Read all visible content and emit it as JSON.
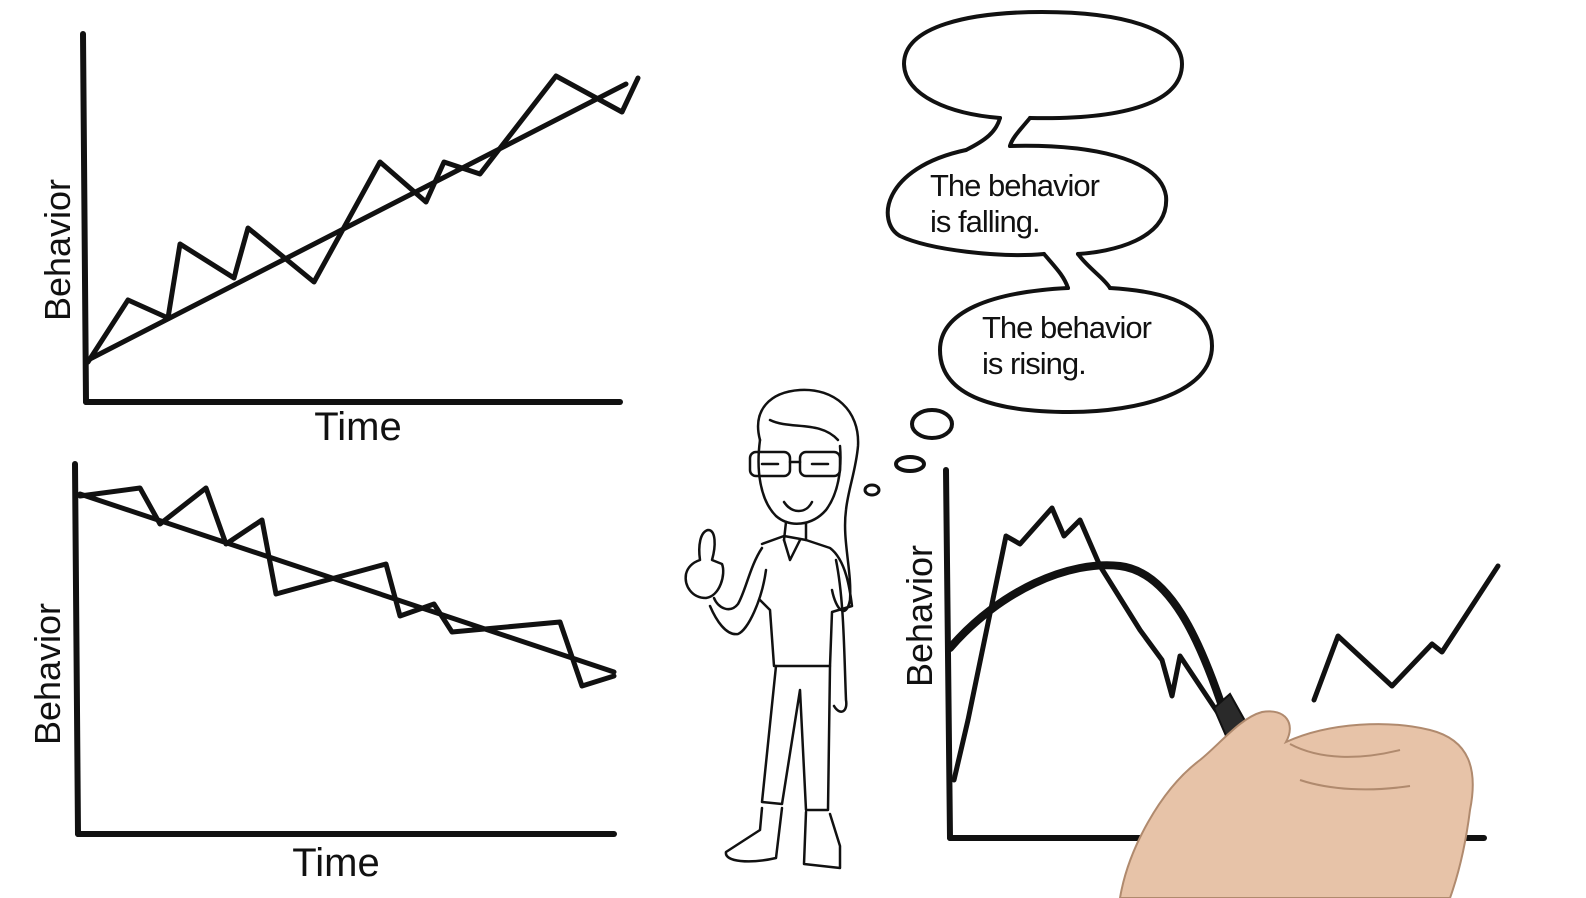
{
  "graphs": [
    {
      "id": "rising",
      "xlabel": "Time",
      "ylabel": "Behavior",
      "trend": "rising"
    },
    {
      "id": "falling",
      "xlabel": "Time",
      "ylabel": "Behavior",
      "trend": "falling"
    },
    {
      "id": "variable",
      "xlabel": "",
      "ylabel": "Behavior",
      "trend": "curved"
    }
  ],
  "bubbles": {
    "empty": {
      "line1": "",
      "line2": ""
    },
    "falling": {
      "line1": "The behavior",
      "line2": "is falling."
    },
    "rising": {
      "line1": "The behavior",
      "line2": "is rising."
    }
  },
  "character": {
    "pose": "thumbs-up",
    "glasses": true
  },
  "hand": {
    "holding": "marker"
  }
}
